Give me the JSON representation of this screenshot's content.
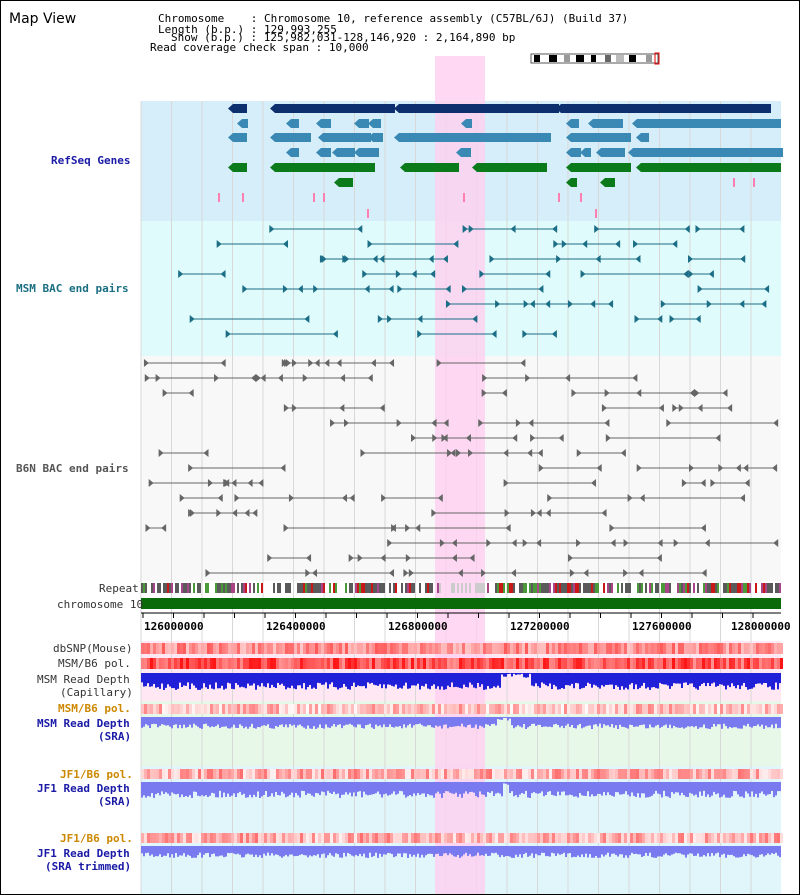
{
  "title": "Map View",
  "info": {
    "chromosome_label": "Chromosome",
    "chromosome_value": "Chromosome 10, reference assembly (C57BL/6J) (Build 37)",
    "length_label": "Length (b.p.)",
    "length_value": "129,993,255",
    "show_label": "Show (b.p.)",
    "show_value": "125,982,031-128,146,920 : 2,164,890 bp",
    "span_label": "Read coverage check span",
    "span_value": "10,000"
  },
  "tracks": {
    "refseq": "RefSeq Genes",
    "msm_bac": "MSM BAC end pairs",
    "b6n_bac": "B6N BAC end pairs",
    "repeat": "Repeat",
    "chromosome": "chromosome 10",
    "dbsnp": "dbSNP(Mouse)",
    "msm_b6_pol_1": "MSM/B6 pol.",
    "msm_depth_cap_1": "MSM Read Depth",
    "msm_depth_cap_2": "(Capillary)",
    "msm_b6_pol_2": "MSM/B6 pol.",
    "msm_depth_sra_1": "MSM Read Depth",
    "msm_depth_sra_2": "(SRA)",
    "jf1_pol_1": "JF1/B6 pol.",
    "jf1_depth_sra_1": "JF1 Read Depth",
    "jf1_depth_sra_2": "(SRA)",
    "jf1_pol_2": "JF1/B6 pol.",
    "jf1_depth_trim_1": "JF1 Read Depth",
    "jf1_depth_trim_2": "(SRA trimmed)"
  },
  "axis": {
    "ticks": [
      "126000000",
      "126400000",
      "126800000",
      "127200000",
      "127600000",
      "128000000"
    ]
  },
  "colors": {
    "refseq_bg": "#d6eefa",
    "bac_bg": "#e0fbfb",
    "highlight": "#ffd0f0",
    "gene_dark": "#0e2f6e",
    "gene_mid": "#3a89b4",
    "gene_green": "#0a7a1a",
    "chrom_bar": "#0a6a0a",
    "depth_blue": "#2020d8",
    "depth_light": "#7a7af0",
    "pol_red": "#e83838"
  }
}
